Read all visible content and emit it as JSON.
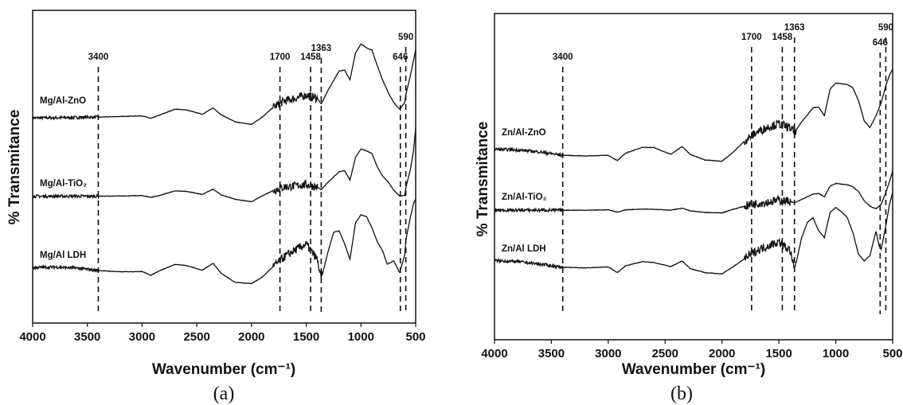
{
  "chart_data": [
    {
      "type": "line",
      "panel_label": "(a)",
      "xlabel": "Wavenumber (cm⁻¹)",
      "ylabel": "% Transmitance",
      "xlim": [
        4000,
        500
      ],
      "x_reversed": true,
      "x_ticks": [
        "4000",
        "3500",
        "3000",
        "2500",
        "2000",
        "1500",
        "1000",
        "500"
      ],
      "y_ticks_shown": false,
      "grid": false,
      "peaks": [
        {
          "label": "3400",
          "x": 3400
        },
        {
          "label": "1700",
          "x": 1740
        },
        {
          "label": "1458",
          "x": 1460
        },
        {
          "label": "1363",
          "x": 1363
        },
        {
          "label": "646",
          "x": 640
        },
        {
          "label": "590",
          "x": 590
        }
      ],
      "series": [
        {
          "name": "Mg/Al-ZnO",
          "values_relative": [
            [
              4000,
              0.45
            ],
            [
              3800,
              0.5
            ],
            [
              3600,
              0.6
            ],
            [
              3400,
              0.7
            ],
            [
              3200,
              0.9
            ],
            [
              3000,
              1.1
            ],
            [
              2920,
              0.3
            ],
            [
              2850,
              1.2
            ],
            [
              2700,
              3.2
            ],
            [
              2600,
              3.0
            ],
            [
              2450,
              1.6
            ],
            [
              2350,
              3.6
            ],
            [
              2280,
              1.5
            ],
            [
              2150,
              -0.8
            ],
            [
              2000,
              -1.6
            ],
            [
              1900,
              0.8
            ],
            [
              1800,
              3.8
            ],
            [
              1700,
              5.8
            ],
            [
              1600,
              6.6
            ],
            [
              1500,
              7.6
            ],
            [
              1400,
              6.6
            ],
            [
              1363,
              4.8
            ],
            [
              1300,
              9.2
            ],
            [
              1200,
              15.2
            ],
            [
              1150,
              15.5
            ],
            [
              1100,
              12.4
            ],
            [
              1050,
              20.8
            ],
            [
              1000,
              23.7
            ],
            [
              950,
              22.5
            ],
            [
              900,
              21.8
            ],
            [
              850,
              16.8
            ],
            [
              800,
              12.2
            ],
            [
              750,
              8.4
            ],
            [
              700,
              5.2
            ],
            [
              646,
              3.2
            ],
            [
              600,
              5.2
            ],
            [
              590,
              7.8
            ],
            [
              550,
              13.5
            ],
            [
              520,
              18.5
            ],
            [
              500,
              22.0
            ]
          ],
          "noise_region": "3400-4000, 1400-1800"
        },
        {
          "name": "Mg/Al-TiO₂",
          "values_relative": [
            [
              4000,
              0.35
            ],
            [
              3800,
              0.35
            ],
            [
              3600,
              0.35
            ],
            [
              3400,
              0.35
            ],
            [
              3200,
              0.4
            ],
            [
              3000,
              0.55
            ],
            [
              2920,
              0.0
            ],
            [
              2850,
              0.5
            ],
            [
              2700,
              2.0
            ],
            [
              2600,
              1.9
            ],
            [
              2450,
              0.9
            ],
            [
              2350,
              2.6
            ],
            [
              2280,
              0.8
            ],
            [
              2150,
              -0.6
            ],
            [
              2000,
              -1.4
            ],
            [
              1900,
              0.5
            ],
            [
              1800,
              2.2
            ],
            [
              1700,
              3.2
            ],
            [
              1600,
              3.6
            ],
            [
              1500,
              4.0
            ],
            [
              1400,
              3.2
            ],
            [
              1363,
              2.4
            ],
            [
              1300,
              4.8
            ],
            [
              1200,
              8.0
            ],
            [
              1150,
              8.4
            ],
            [
              1100,
              5.4
            ],
            [
              1050,
              12.5
            ],
            [
              1000,
              15.2
            ],
            [
              950,
              14.6
            ],
            [
              900,
              13.8
            ],
            [
              850,
              9.5
            ],
            [
              800,
              6.6
            ],
            [
              750,
              4.8
            ],
            [
              700,
              2.2
            ],
            [
              646,
              0.4
            ],
            [
              600,
              0.6
            ],
            [
              590,
              3.0
            ],
            [
              550,
              8.5
            ],
            [
              520,
              14.5
            ],
            [
              500,
              22.0
            ]
          ],
          "noise_region": "3400-4000, 1400-1800"
        },
        {
          "name": "Mg/Al LDH",
          "values_relative": [
            [
              4000,
              0.4
            ],
            [
              3800,
              0.6
            ],
            [
              3600,
              0.3
            ],
            [
              3400,
              -0.5
            ],
            [
              3200,
              -0.9
            ],
            [
              3000,
              -0.8
            ],
            [
              2920,
              -2.0
            ],
            [
              2850,
              -0.7
            ],
            [
              2700,
              1.4
            ],
            [
              2600,
              1.1
            ],
            [
              2450,
              -0.4
            ],
            [
              2350,
              1.8
            ],
            [
              2280,
              -1.3
            ],
            [
              2150,
              -4.2
            ],
            [
              2000,
              -4.6
            ],
            [
              1900,
              -2.5
            ],
            [
              1800,
              0.8
            ],
            [
              1700,
              3.8
            ],
            [
              1600,
              6.0
            ],
            [
              1500,
              7.8
            ],
            [
              1400,
              3.0
            ],
            [
              1363,
              -3.2
            ],
            [
              1300,
              5.5
            ],
            [
              1250,
              11.5
            ],
            [
              1200,
              12.0
            ],
            [
              1150,
              8.0
            ],
            [
              1100,
              3.0
            ],
            [
              1050,
              14.5
            ],
            [
              1000,
              17.0
            ],
            [
              950,
              16.5
            ],
            [
              900,
              13.0
            ],
            [
              850,
              8.5
            ],
            [
              800,
              5.5
            ],
            [
              760,
              1.5
            ],
            [
              700,
              2.5
            ],
            [
              646,
              -1.2
            ],
            [
              600,
              4.5
            ],
            [
              590,
              9.0
            ],
            [
              550,
              16.0
            ],
            [
              520,
              20.5
            ],
            [
              500,
              22.0
            ]
          ],
          "noise_region": "3400-4000, 1350-1800"
        }
      ]
    },
    {
      "type": "line",
      "panel_label": "(b)",
      "xlabel": "Wavenumber (cm⁻¹)",
      "ylabel": "% Transmitance",
      "xlim": [
        4000,
        500
      ],
      "x_reversed": true,
      "x_ticks": [
        "4000",
        "3500",
        "3000",
        "2500",
        "2000",
        "1500",
        "1000",
        "500"
      ],
      "y_ticks_shown": false,
      "grid": false,
      "peaks": [
        {
          "label": "3400",
          "x": 3400
        },
        {
          "label": "1700",
          "x": 1740
        },
        {
          "label": "1458",
          "x": 1470
        },
        {
          "label": "1363",
          "x": 1363
        },
        {
          "label": "646",
          "x": 610
        },
        {
          "label": "590",
          "x": 560
        }
      ],
      "series": [
        {
          "name": "Zn/Al-ZnO",
          "values_relative": [
            [
              4000,
              2.0
            ],
            [
              3800,
              1.8
            ],
            [
              3600,
              1.2
            ],
            [
              3400,
              0.2
            ],
            [
              3200,
              0.0
            ],
            [
              3000,
              0.2
            ],
            [
              2920,
              -1.4
            ],
            [
              2850,
              0.8
            ],
            [
              2700,
              2.6
            ],
            [
              2600,
              2.5
            ],
            [
              2450,
              0.5
            ],
            [
              2350,
              2.8
            ],
            [
              2280,
              0.5
            ],
            [
              2150,
              -1.2
            ],
            [
              2000,
              -1.6
            ],
            [
              1900,
              1.2
            ],
            [
              1800,
              4.5
            ],
            [
              1700,
              7.0
            ],
            [
              1600,
              8.6
            ],
            [
              1500,
              9.6
            ],
            [
              1400,
              8.4
            ],
            [
              1363,
              7.0
            ],
            [
              1300,
              10.2
            ],
            [
              1200,
              14.4
            ],
            [
              1150,
              14.6
            ],
            [
              1100,
              12.0
            ],
            [
              1050,
              20.0
            ],
            [
              1000,
              21.8
            ],
            [
              950,
              21.6
            ],
            [
              900,
              21.4
            ],
            [
              850,
              20.4
            ],
            [
              800,
              16.5
            ],
            [
              750,
              10.5
            ],
            [
              700,
              8.5
            ],
            [
              646,
              12.0
            ],
            [
              600,
              16.0
            ],
            [
              560,
              21.0
            ],
            [
              530,
              24.0
            ],
            [
              500,
              26.0
            ]
          ],
          "noise_region": "3400-4000, 1350-1800"
        },
        {
          "name": "Zn/Al-TiO₂",
          "values_relative": [
            [
              4000,
              0.2
            ],
            [
              3800,
              0.2
            ],
            [
              3600,
              0.2
            ],
            [
              3400,
              0.2
            ],
            [
              3200,
              0.2
            ],
            [
              3000,
              0.3
            ],
            [
              2920,
              -0.4
            ],
            [
              2850,
              0.3
            ],
            [
              2700,
              0.5
            ],
            [
              2600,
              0.5
            ],
            [
              2450,
              0.2
            ],
            [
              2350,
              0.8
            ],
            [
              2280,
              0.0
            ],
            [
              2150,
              -0.5
            ],
            [
              2000,
              -0.6
            ],
            [
              1900,
              0.5
            ],
            [
              1800,
              1.4
            ],
            [
              1700,
              2.2
            ],
            [
              1600,
              2.6
            ],
            [
              1500,
              3.2
            ],
            [
              1400,
              2.8
            ],
            [
              1363,
              2.4
            ],
            [
              1300,
              3.4
            ],
            [
              1200,
              5.0
            ],
            [
              1150,
              5.2
            ],
            [
              1100,
              4.2
            ],
            [
              1050,
              7.4
            ],
            [
              1000,
              8.2
            ],
            [
              950,
              8.0
            ],
            [
              900,
              7.8
            ],
            [
              850,
              7.2
            ],
            [
              800,
              5.8
            ],
            [
              750,
              3.0
            ],
            [
              700,
              1.4
            ],
            [
              646,
              0.6
            ],
            [
              600,
              2.0
            ],
            [
              560,
              5.5
            ],
            [
              530,
              8.5
            ],
            [
              500,
              12.0
            ]
          ],
          "noise_region": "3400-4000, 1400-1800"
        },
        {
          "name": "Zn/Al LDH",
          "values_relative": [
            [
              4000,
              0.6
            ],
            [
              3800,
              0.3
            ],
            [
              3600,
              -0.5
            ],
            [
              3400,
              -1.4
            ],
            [
              3200,
              -1.6
            ],
            [
              3000,
              -1.3
            ],
            [
              2920,
              -3.0
            ],
            [
              2850,
              -1.0
            ],
            [
              2700,
              0.3
            ],
            [
              2600,
              0.0
            ],
            [
              2450,
              -1.2
            ],
            [
              2350,
              0.5
            ],
            [
              2280,
              -1.8
            ],
            [
              2150,
              -3.0
            ],
            [
              2000,
              -3.4
            ],
            [
              1900,
              -1.2
            ],
            [
              1800,
              1.2
            ],
            [
              1700,
              3.5
            ],
            [
              1600,
              5.0
            ],
            [
              1500,
              6.2
            ],
            [
              1400,
              3.5
            ],
            [
              1363,
              -2.4
            ],
            [
              1300,
              7.5
            ],
            [
              1250,
              12.0
            ],
            [
              1200,
              13.4
            ],
            [
              1150,
              9.5
            ],
            [
              1100,
              7.5
            ],
            [
              1050,
              15.0
            ],
            [
              1000,
              16.5
            ],
            [
              950,
              15.2
            ],
            [
              900,
              13.5
            ],
            [
              850,
              9.0
            ],
            [
              800,
              2.5
            ],
            [
              750,
              0.5
            ],
            [
              700,
              2.0
            ],
            [
              646,
              9.5
            ],
            [
              620,
              5.0
            ],
            [
              600,
              4.0
            ],
            [
              560,
              11.0
            ],
            [
              530,
              17.0
            ],
            [
              500,
              21.0
            ]
          ],
          "noise_region": "3400-4000, 1350-1800"
        }
      ]
    }
  ]
}
